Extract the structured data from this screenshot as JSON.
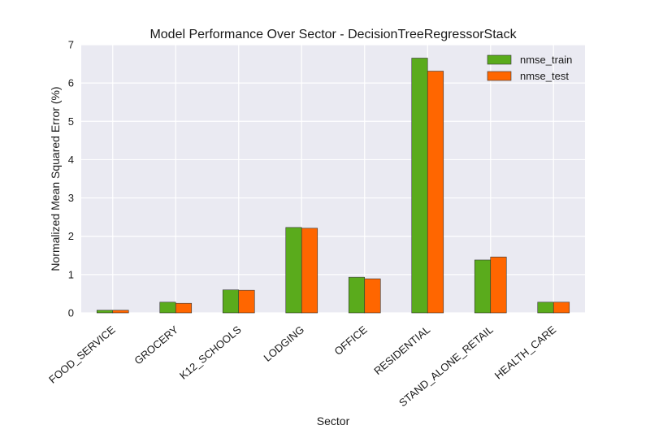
{
  "chart_data": {
    "type": "bar",
    "title": "Model Performance Over Sector - DecisionTreeRegressorStack",
    "xlabel": "Sector",
    "ylabel": "Normalized Mean Squared Error (%)",
    "ylim": [
      0,
      7
    ],
    "yticks": [
      "0",
      "1",
      "2",
      "3",
      "4",
      "5",
      "6",
      "7"
    ],
    "grid": true,
    "legend_position": "top-right",
    "background_color": "#eaeaf2",
    "categories": [
      "FOOD_SERVICE",
      "GROCERY",
      "K12_SCHOOLS",
      "LODGING",
      "OFFICE",
      "RESIDENTIAL",
      "STAND_ALONE_RETAIL",
      "HEALTH_CARE"
    ],
    "series": [
      {
        "name": "nmse_train",
        "color": "#5aab1c",
        "values": [
          0.07,
          0.28,
          0.6,
          2.23,
          0.93,
          6.65,
          1.38,
          0.28
        ]
      },
      {
        "name": "nmse_test",
        "color": "#ff6600",
        "values": [
          0.07,
          0.25,
          0.59,
          2.21,
          0.89,
          6.31,
          1.46,
          0.28
        ]
      }
    ]
  }
}
